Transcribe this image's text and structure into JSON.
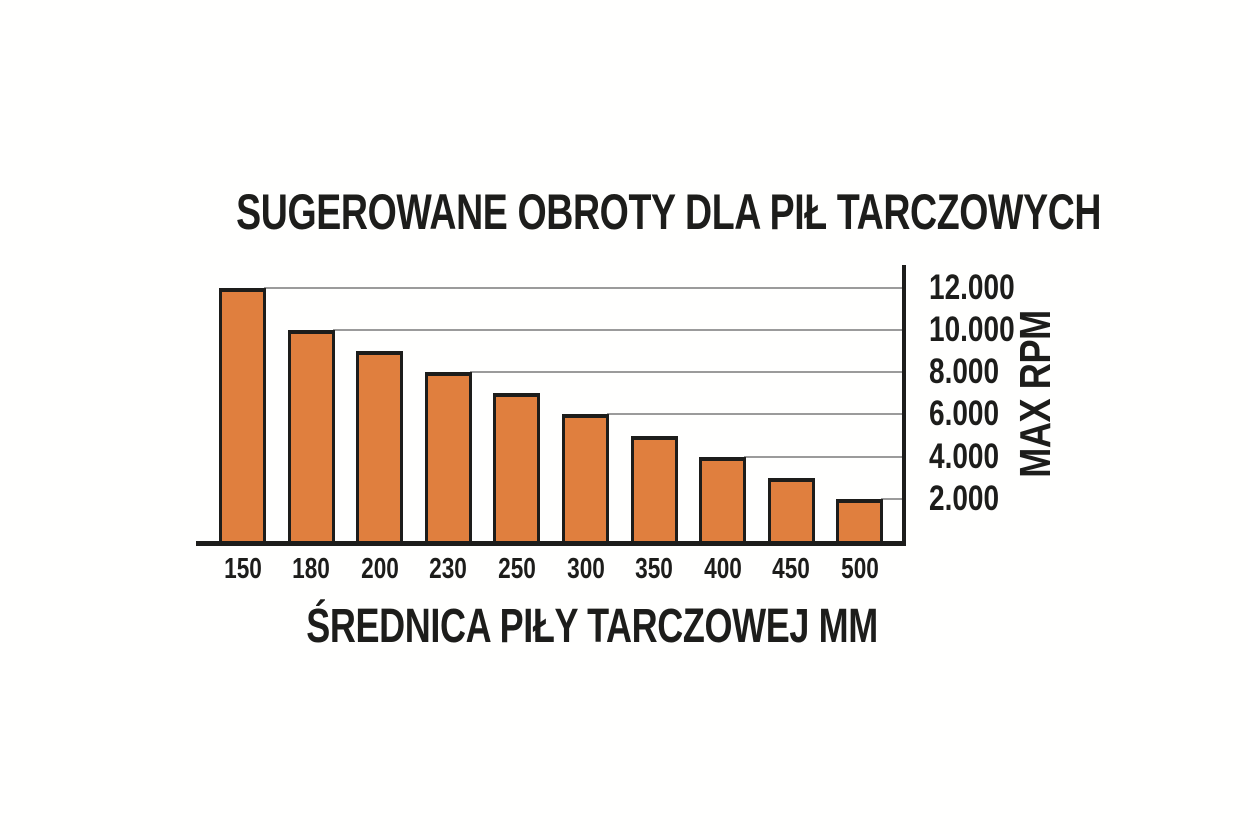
{
  "chart_data": {
    "type": "bar",
    "title": "SUGEROWANE OBROTY DLA PIŁ TARCZOWYCH",
    "xlabel": "ŚREDNICA PIŁY TARCZOWEJ MM",
    "ylabel": "MAX RPM",
    "categories": [
      "150",
      "180",
      "200",
      "230",
      "250",
      "300",
      "350",
      "400",
      "450",
      "500"
    ],
    "values": [
      12000,
      10000,
      9000,
      8000,
      7000,
      6000,
      5000,
      4000,
      3000,
      2000
    ],
    "yticks": [
      {
        "value": 12000,
        "label": "12.000"
      },
      {
        "value": 10000,
        "label": "10.000"
      },
      {
        "value": 8000,
        "label": "8.000"
      },
      {
        "value": 6000,
        "label": "6.000"
      },
      {
        "value": 4000,
        "label": "4.000"
      },
      {
        "value": 2000,
        "label": "2.000"
      }
    ],
    "ylim": [
      0,
      13000
    ],
    "grid": "horizontal gridlines from bar top to right-side axis",
    "legend": "none",
    "y_axis_side": "right",
    "colors": {
      "bar_fill": "#E07F3E",
      "bar_border": "#1D1D1B",
      "gridline": "#9B9B9B",
      "ink": "#1D1D1B",
      "background": "#FFFFFE"
    }
  }
}
